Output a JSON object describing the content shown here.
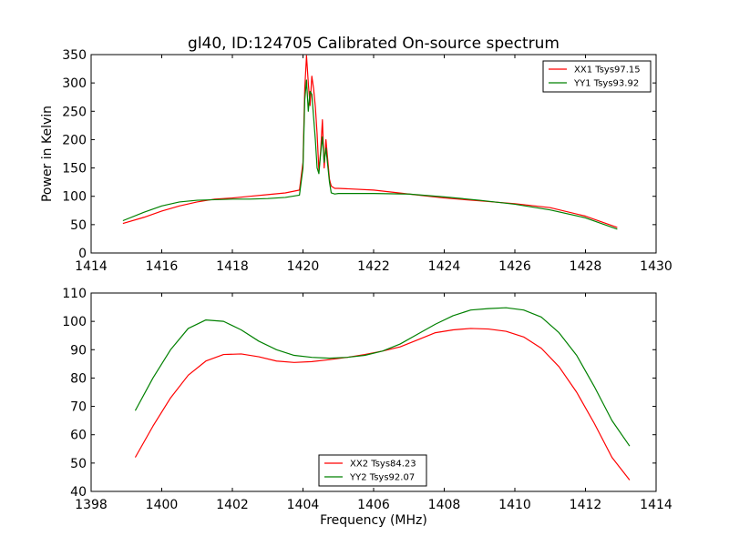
{
  "chart_data": [
    {
      "type": "line",
      "title": "gl40, ID:124705 Calibrated On-source spectrum",
      "xlabel": "",
      "ylabel": "Power in Kelvin",
      "xlim": [
        1414,
        1430
      ],
      "ylim": [
        0,
        350
      ],
      "xticks": [
        "1414",
        "1416",
        "1418",
        "1420",
        "1422",
        "1424",
        "1426",
        "1428",
        "1430"
      ],
      "yticks": [
        "0",
        "50",
        "100",
        "150",
        "200",
        "250",
        "300",
        "350"
      ],
      "legend_position": "top-right",
      "series": [
        {
          "name": "XX1 Tsys97.15",
          "color": "#ff0000",
          "x": [
            1414.9,
            1415.5,
            1416.0,
            1416.5,
            1417.0,
            1417.5,
            1418.0,
            1418.5,
            1419.0,
            1419.5,
            1419.9,
            1420.0,
            1420.05,
            1420.1,
            1420.15,
            1420.2,
            1420.25,
            1420.3,
            1420.35,
            1420.4,
            1420.45,
            1420.5,
            1420.55,
            1420.6,
            1420.65,
            1420.7,
            1420.75,
            1420.8,
            1420.9,
            1421.0,
            1422.0,
            1423.0,
            1424.0,
            1425.0,
            1426.0,
            1427.0,
            1428.0,
            1428.9
          ],
          "y": [
            52,
            63,
            74,
            83,
            90,
            95,
            97,
            100,
            103,
            106,
            111,
            160,
            290,
            348,
            300,
            260,
            312,
            290,
            258,
            210,
            145,
            180,
            235,
            150,
            200,
            165,
            130,
            118,
            114,
            114,
            111,
            104,
            97,
            92,
            87,
            80,
            65,
            45
          ]
        },
        {
          "name": "YY1 Tsys93.92",
          "color": "#008000",
          "x": [
            1414.9,
            1415.5,
            1416.0,
            1416.5,
            1417.0,
            1417.5,
            1418.0,
            1418.5,
            1419.0,
            1419.5,
            1419.9,
            1420.0,
            1420.05,
            1420.1,
            1420.15,
            1420.2,
            1420.25,
            1420.3,
            1420.35,
            1420.4,
            1420.45,
            1420.5,
            1420.55,
            1420.6,
            1420.65,
            1420.7,
            1420.75,
            1420.8,
            1420.9,
            1421.0,
            1422.0,
            1423.0,
            1424.0,
            1425.0,
            1426.0,
            1427.0,
            1428.0,
            1428.9
          ],
          "y": [
            57,
            72,
            83,
            90,
            93,
            94,
            95,
            95,
            96,
            98,
            102,
            150,
            270,
            305,
            250,
            285,
            280,
            240,
            200,
            150,
            140,
            175,
            205,
            160,
            185,
            155,
            125,
            106,
            104,
            105,
            105,
            104,
            99,
            93,
            86,
            76,
            62,
            42
          ]
        }
      ]
    },
    {
      "type": "line",
      "title": "",
      "xlabel": "Frequency (MHz)",
      "ylabel": "",
      "xlim": [
        1398,
        1414
      ],
      "ylim": [
        40,
        110
      ],
      "xticks": [
        "1398",
        "1400",
        "1402",
        "1404",
        "1406",
        "1408",
        "1410",
        "1412",
        "1414"
      ],
      "yticks": [
        "40",
        "50",
        "60",
        "70",
        "80",
        "90",
        "100",
        "110"
      ],
      "legend_position": "bottom-center",
      "series": [
        {
          "name": "XX2 Tsys84.23",
          "color": "#ff0000",
          "x": [
            1399.25,
            1399.75,
            1400.25,
            1400.75,
            1401.25,
            1401.75,
            1402.25,
            1402.75,
            1403.25,
            1403.75,
            1404.25,
            1404.75,
            1405.25,
            1405.75,
            1406.25,
            1406.75,
            1407.25,
            1407.75,
            1408.25,
            1408.75,
            1409.25,
            1409.75,
            1410.25,
            1410.75,
            1411.25,
            1411.75,
            1412.25,
            1412.75,
            1413.25
          ],
          "y": [
            52,
            63,
            73,
            81,
            86,
            88.3,
            88.5,
            87.5,
            86,
            85.5,
            85.8,
            86.5,
            87.3,
            88.3,
            89.5,
            91,
            93.5,
            96,
            97,
            97.5,
            97.3,
            96.5,
            94.5,
            90.5,
            84,
            75,
            64,
            52,
            44
          ]
        },
        {
          "name": "YY2 Tsys92.07",
          "color": "#008000",
          "x": [
            1399.25,
            1399.75,
            1400.25,
            1400.75,
            1401.25,
            1401.75,
            1402.25,
            1402.75,
            1403.25,
            1403.75,
            1404.25,
            1404.75,
            1405.25,
            1405.75,
            1406.25,
            1406.75,
            1407.25,
            1407.75,
            1408.25,
            1408.75,
            1409.25,
            1409.75,
            1410.25,
            1410.75,
            1411.25,
            1411.75,
            1412.25,
            1412.75,
            1413.25
          ],
          "y": [
            68.5,
            80,
            90,
            97.5,
            100.5,
            100,
            97,
            93,
            90,
            88,
            87.3,
            87,
            87.3,
            88,
            89.5,
            92,
            95.5,
            99,
            102,
            104,
            104.5,
            104.8,
            104,
            101.5,
            96,
            88,
            77,
            65,
            56
          ]
        }
      ]
    }
  ]
}
